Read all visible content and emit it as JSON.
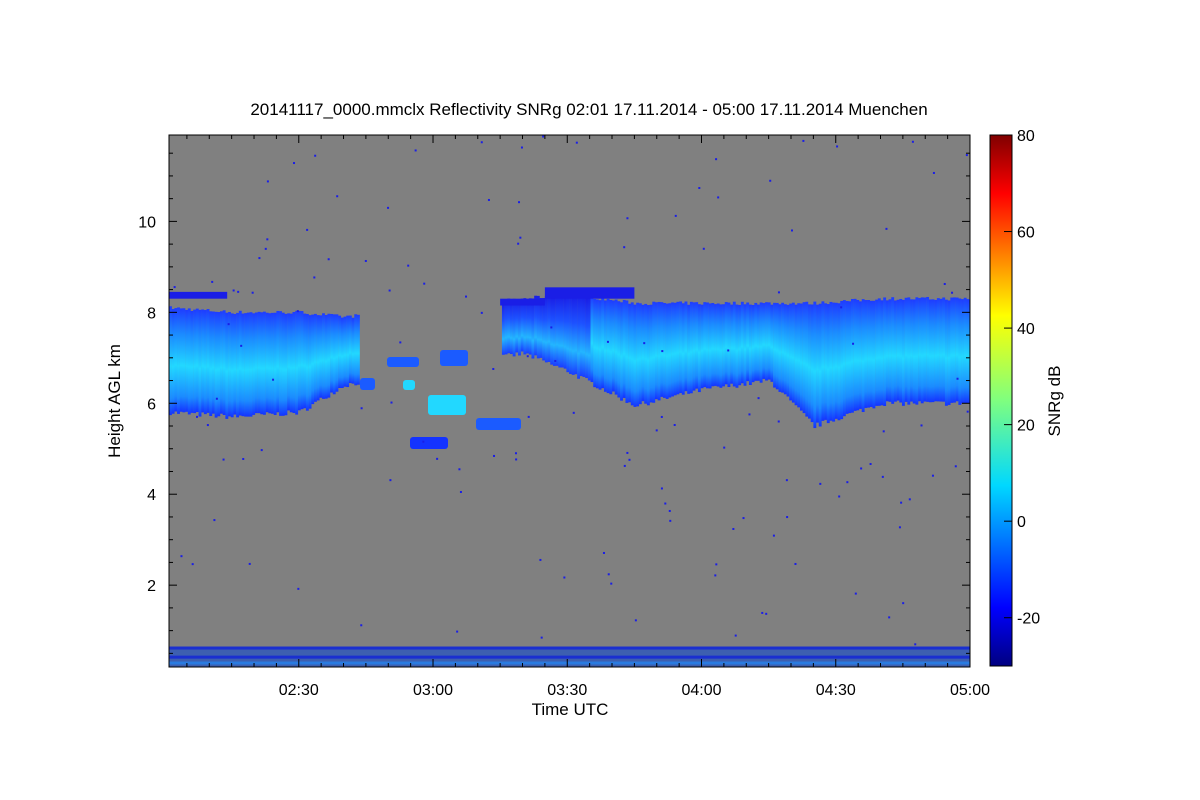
{
  "chart_data": {
    "type": "heatmap",
    "title": "20141117_0000.mmclx Reflectivity SNRg   02:01 17.11.2014 - 05:00 17.11.2014 Muenchen",
    "xlabel": "Time UTC",
    "ylabel": "Height AGL km",
    "colorbar_label": "SNRg dB",
    "x_range": [
      "02:01",
      "05:00"
    ],
    "x_ticks": [
      "02:30",
      "03:00",
      "03:30",
      "04:00",
      "04:30",
      "05:00"
    ],
    "y_range": [
      0.2,
      11.9
    ],
    "y_ticks": [
      2,
      4,
      6,
      8,
      10
    ],
    "colorbar_range": [
      -30,
      80
    ],
    "colorbar_ticks": [
      -20,
      0,
      20,
      40,
      60,
      80
    ],
    "colormap": "jet",
    "background_color": "#808080",
    "cloud_layer": {
      "description_values_km": [
        {
          "time": "02:01",
          "base": 5.8,
          "top": 8.1
        },
        {
          "time": "02:15",
          "base": 5.7,
          "top": 8.0
        },
        {
          "time": "02:30",
          "base": 5.8,
          "top": 8.0
        },
        {
          "time": "02:40",
          "base": 6.4,
          "top": 7.9
        },
        {
          "time": "03:20",
          "base": 7.1,
          "top": 8.3
        },
        {
          "time": "03:30",
          "base": 6.7,
          "top": 8.4
        },
        {
          "time": "03:45",
          "base": 5.95,
          "top": 8.2
        },
        {
          "time": "04:00",
          "base": 6.3,
          "top": 8.2
        },
        {
          "time": "04:15",
          "base": 6.5,
          "top": 8.2
        },
        {
          "time": "04:25",
          "base": 5.5,
          "top": 8.2
        },
        {
          "time": "04:40",
          "base": 6.0,
          "top": 8.3
        },
        {
          "time": "05:00",
          "base": 6.0,
          "top": 8.3
        }
      ],
      "snr_range_db": [
        -25,
        10
      ]
    },
    "near_surface_band_km": [
      0.2,
      0.65
    ]
  }
}
